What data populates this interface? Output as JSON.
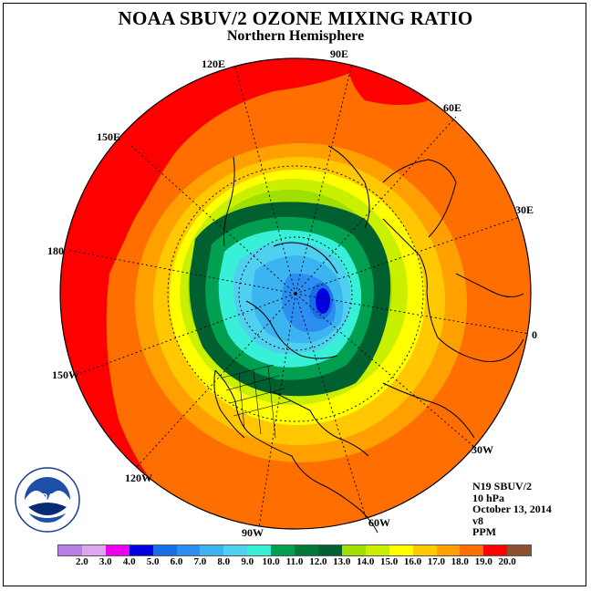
{
  "title": "NOAA SBUV/2 OZONE MIXING RATIO",
  "subtitle": "Northern Hemisphere",
  "logo_text": "NOAA",
  "logo_ring_text": "NATIONAL OCEANIC AND ATMOSPHERIC ADMINISTRATION · U.S. DEPARTMENT OF COMMERCE",
  "longitude_labels": {
    "e120": "120E",
    "e90": "90E",
    "e60": "60E",
    "e150": "150E",
    "e30": "30E",
    "d180": "180",
    "d0": "0",
    "w150": "150W",
    "w30": "30W",
    "w120": "120W",
    "w60": "60W",
    "w90": "90W"
  },
  "info": {
    "satellite": "N19 SBUV/2",
    "level": "10 hPa",
    "date": "October 13, 2014",
    "version": "v8",
    "units": "PPM"
  },
  "colorbar": {
    "ticks": [
      "2.0",
      "3.0",
      "4.0",
      "5.0",
      "6.0",
      "7.0",
      "8.0",
      "9.0",
      "10.0",
      "11.0",
      "12.0",
      "13.0",
      "14.0",
      "15.0",
      "16.0",
      "17.0",
      "18.0",
      "19.0",
      "20.0"
    ],
    "colors": [
      "#b77fe6",
      "#dba8f0",
      "#f000f0",
      "#0000e0",
      "#1a6ee6",
      "#2b8ef0",
      "#3cb4f2",
      "#50d0f0",
      "#38f0d8",
      "#00a050",
      "#007838",
      "#006030",
      "#a0e000",
      "#c8f000",
      "#ffff00",
      "#ffc800",
      "#ffa000",
      "#ff6e00",
      "#ff0000",
      "#8c5030"
    ]
  },
  "map": {
    "projection": "north-polar-stereographic",
    "background_field_color": "#ff6e00",
    "low_center_color": "#0000e0"
  }
}
